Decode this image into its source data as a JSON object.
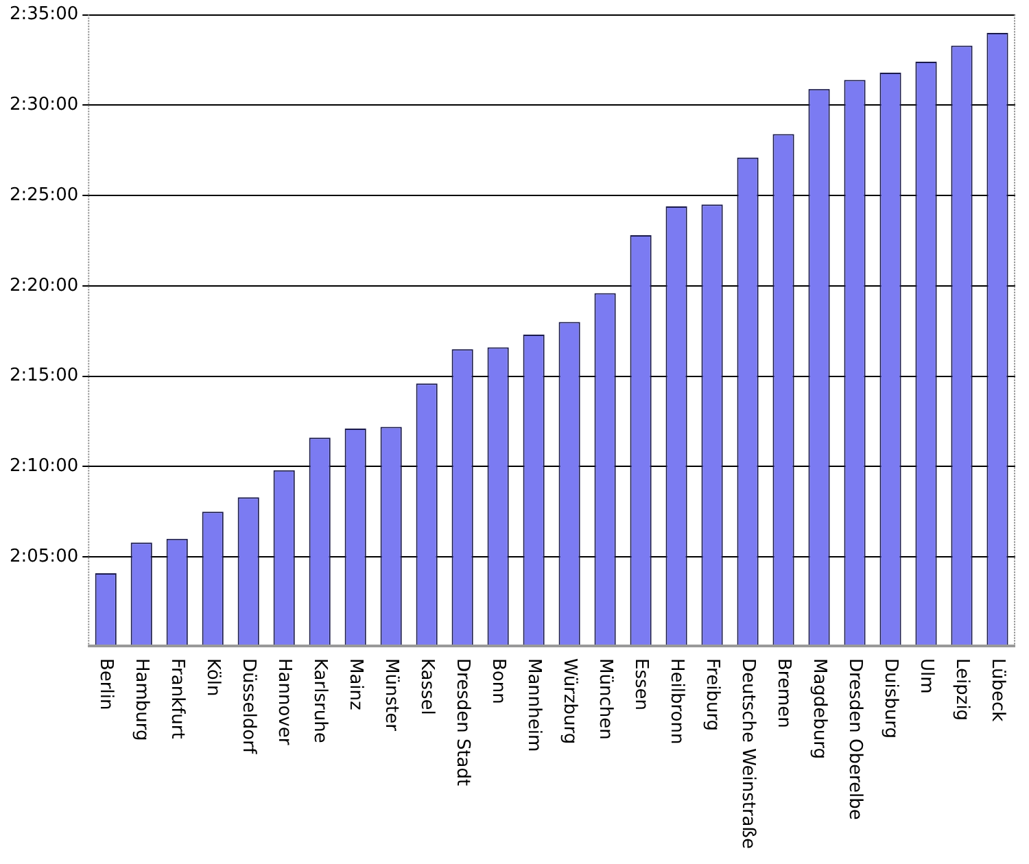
{
  "chart_data": {
    "type": "bar",
    "categories": [
      "Berlin",
      "Hamburg",
      "Frankfurt",
      "Köln",
      "Düsseldorf",
      "Hannover",
      "Karlsruhe",
      "Mainz",
      "Münster",
      "Kassel",
      "Dresden Stadt",
      "Bonn",
      "Mannheim",
      "Würzburg",
      "München",
      "Essen",
      "Heilbronn",
      "Freiburg",
      "Deutsche Weinstraße",
      "Bremen",
      "Magdeburg",
      "Dresden Oberelbe",
      "Duisburg",
      "Ulm",
      "Leipzig",
      "Lübeck"
    ],
    "values": [
      124.1,
      125.8,
      126.0,
      127.5,
      128.3,
      129.8,
      131.6,
      132.1,
      132.2,
      134.6,
      136.5,
      136.6,
      137.3,
      138.0,
      139.6,
      142.8,
      144.4,
      144.5,
      147.1,
      148.4,
      150.9,
      151.4,
      151.8,
      152.4,
      153.3,
      154.0
    ],
    "color": "#7b7bf2",
    "ylim": [
      120,
      155
    ],
    "yticks": [
      {
        "value": 125,
        "label": "2:05:00"
      },
      {
        "value": 130,
        "label": "2:10:00"
      },
      {
        "value": 135,
        "label": "2:15:00"
      },
      {
        "value": 140,
        "label": "2:20:00"
      },
      {
        "value": 145,
        "label": "2:25:00"
      },
      {
        "value": 150,
        "label": "2:30:00"
      },
      {
        "value": 155,
        "label": "2:35:00"
      }
    ],
    "grid": "y"
  }
}
